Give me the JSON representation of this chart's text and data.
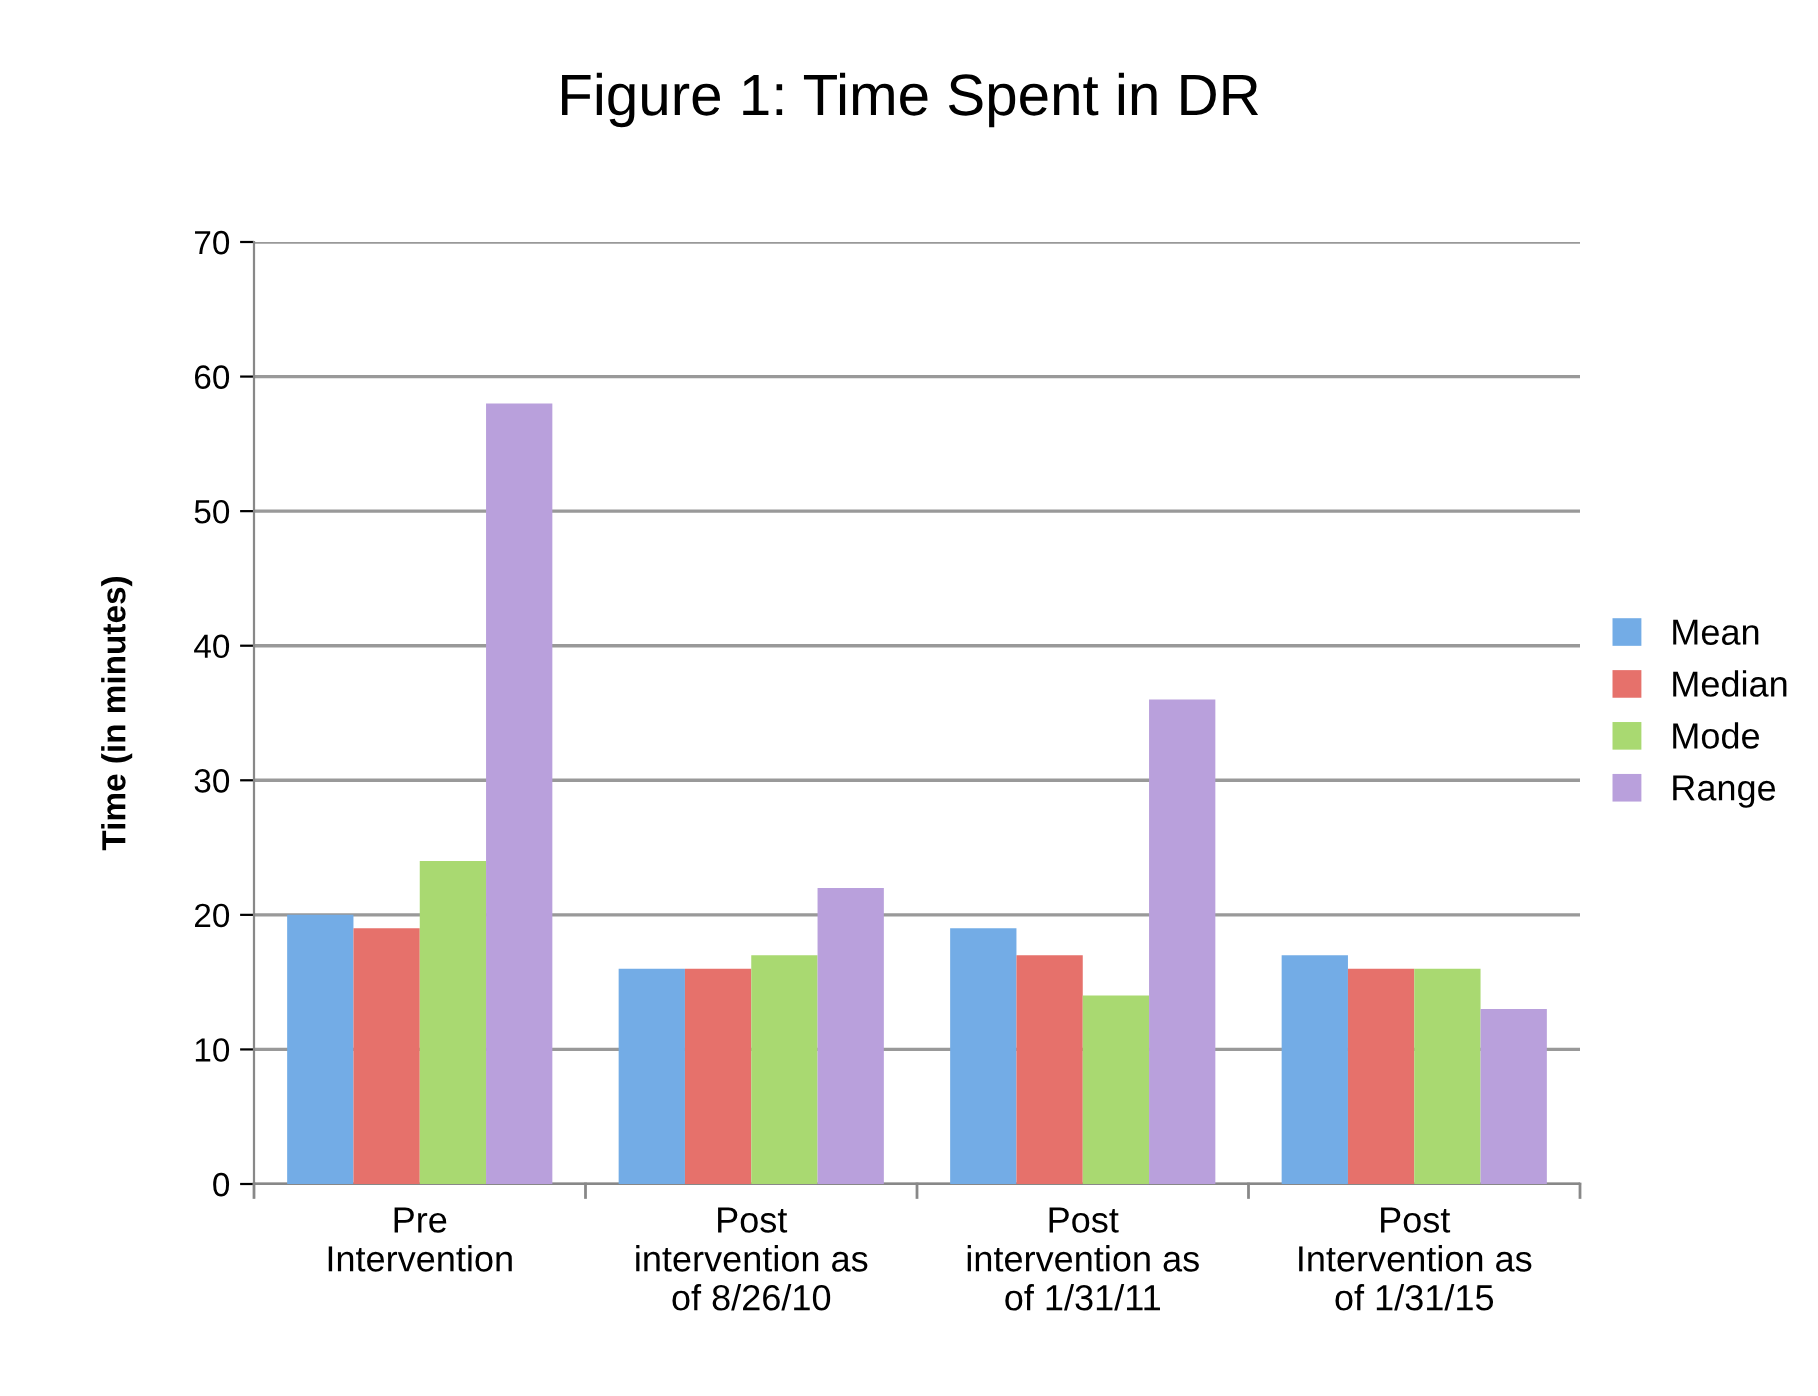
{
  "chart_data": {
    "type": "bar",
    "title": "Figure 1: Time Spent in DR",
    "ylabel": "Time (in minutes)",
    "categories": [
      "Pre\nIntervention",
      "Post\nintervention as\nof 8/26/10",
      "Post\nintervention as\nof 1/31/11",
      "Post\nIntervention as\nof 1/31/15"
    ],
    "series": [
      {
        "name": "Mean",
        "color": "#73ace6",
        "values": [
          20,
          16,
          19,
          17
        ]
      },
      {
        "name": "Median",
        "color": "#e6716b",
        "values": [
          19,
          16,
          17,
          16
        ]
      },
      {
        "name": "Mode",
        "color": "#a9d971",
        "values": [
          24,
          17,
          14,
          16
        ]
      },
      {
        "name": "Range",
        "color": "#b9a0dc",
        "values": [
          58,
          22,
          36,
          13
        ]
      }
    ],
    "ylim": [
      0,
      70
    ],
    "yticks": [
      0,
      10,
      20,
      30,
      40,
      50,
      60,
      70
    ],
    "grid": "y",
    "legend": "right"
  }
}
